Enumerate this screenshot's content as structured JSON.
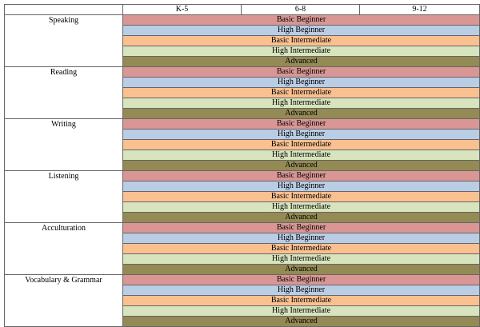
{
  "header": {
    "corner": "",
    "grades": [
      "K-5",
      "6-8",
      "9-12"
    ]
  },
  "levels": [
    {
      "label": "Basic Beginner",
      "color": "#d99694"
    },
    {
      "label": "High Beginner",
      "color": "#b9cde5"
    },
    {
      "label": "Basic Intermediate",
      "color": "#fac090"
    },
    {
      "label": "High Intermediate",
      "color": "#d7e4bd"
    },
    {
      "label": "Advanced",
      "color": "#948a54"
    }
  ],
  "skills": [
    "Speaking",
    "Reading",
    "Writing",
    "Listening",
    "Acculturation",
    "Vocabulary & Grammar"
  ]
}
